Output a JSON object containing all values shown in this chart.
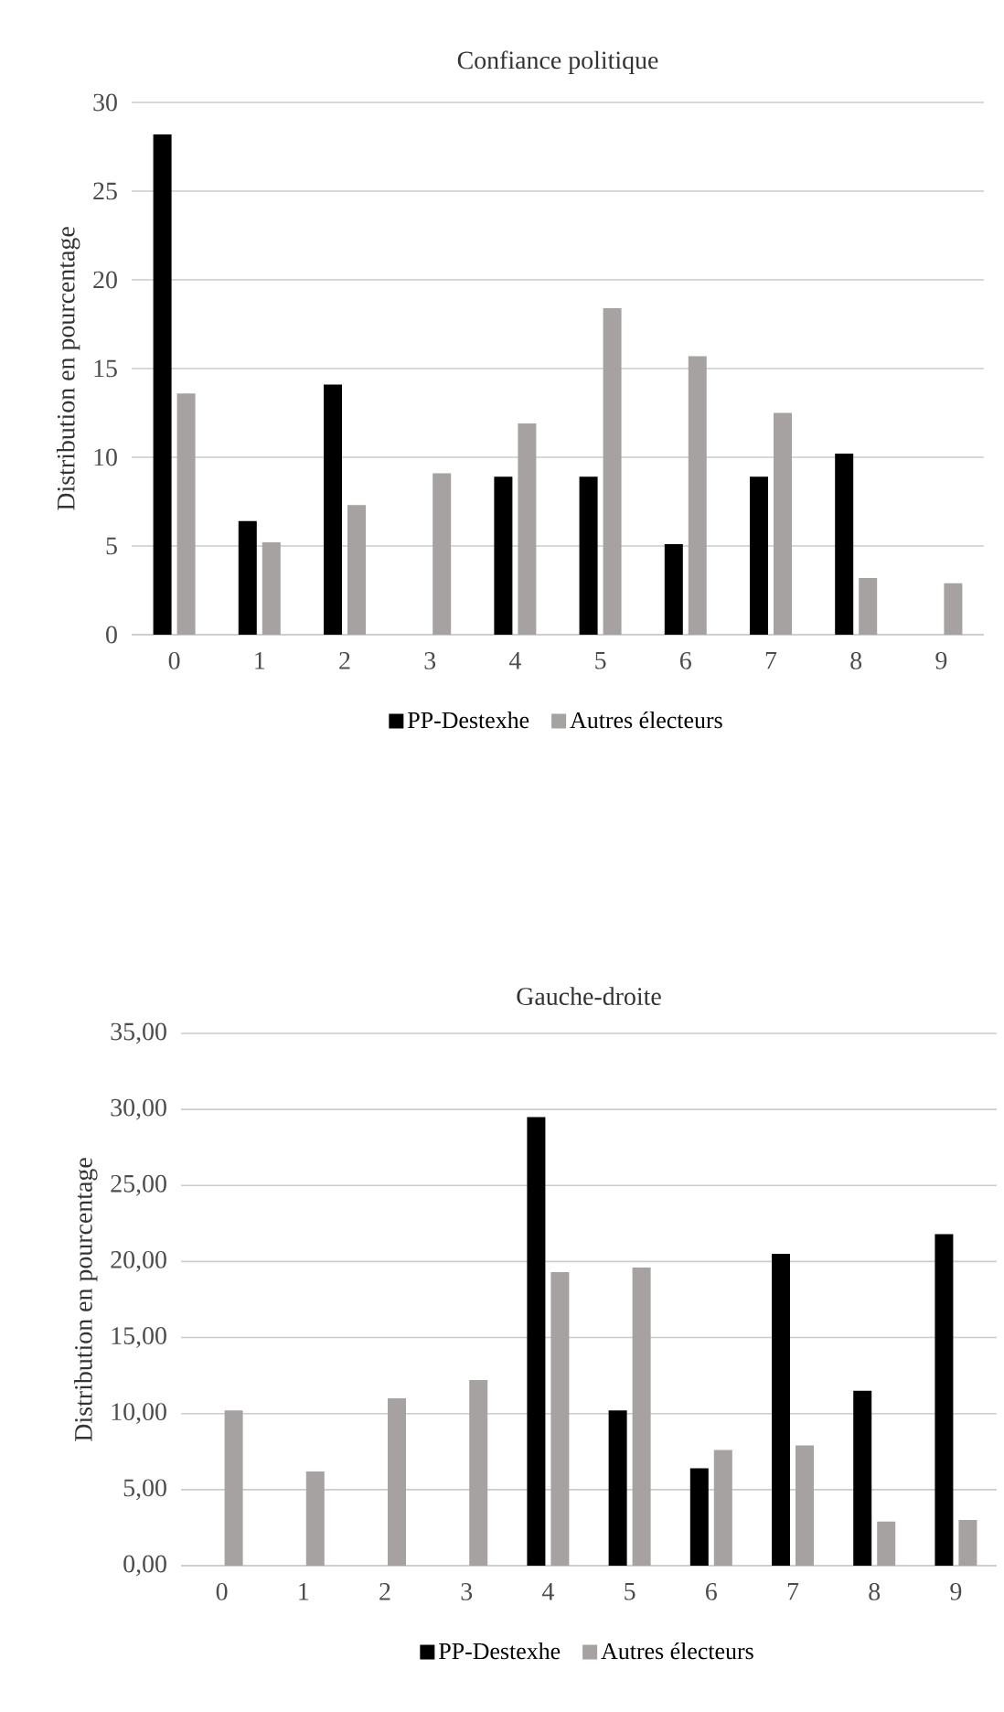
{
  "chart_data": [
    {
      "type": "bar",
      "title": "Confiance politique",
      "ylabel": "Distribution en pourcentage",
      "categories": [
        "0",
        "1",
        "2",
        "3",
        "4",
        "5",
        "6",
        "7",
        "8",
        "9"
      ],
      "series": [
        {
          "name": "PP-Destexhe",
          "color": "#000000",
          "values": [
            28.2,
            6.4,
            14.1,
            0,
            8.9,
            8.9,
            5.1,
            8.9,
            10.2,
            0
          ]
        },
        {
          "name": "Autres électeurs",
          "color": "#a5a2a1",
          "values": [
            13.6,
            5.2,
            7.3,
            9.1,
            11.9,
            18.4,
            15.7,
            12.5,
            3.2,
            2.9
          ]
        }
      ],
      "ylim": [
        0,
        30
      ],
      "yticks": [
        0,
        5,
        10,
        15,
        20,
        25,
        30
      ],
      "grid": "y",
      "legend": "bottom"
    },
    {
      "type": "bar",
      "title": "Gauche-droite",
      "ylabel": "Distribution en pourcentage",
      "categories": [
        "0",
        "1",
        "2",
        "3",
        "4",
        "5",
        "6",
        "7",
        "8",
        "9"
      ],
      "series": [
        {
          "name": "PP-Destexhe",
          "color": "#000000",
          "values": [
            0,
            0,
            0,
            0,
            29.5,
            10.2,
            6.4,
            20.5,
            11.5,
            21.8
          ]
        },
        {
          "name": "Autres électeurs",
          "color": "#a5a2a1",
          "values": [
            10.2,
            6.2,
            11.0,
            12.2,
            19.3,
            19.6,
            7.6,
            7.9,
            2.9,
            3.0
          ]
        }
      ],
      "ylim": [
        0,
        35
      ],
      "yticks": [
        {
          "value": 0,
          "label": "0,00"
        },
        {
          "value": 5,
          "label": "5,00"
        },
        {
          "value": 10,
          "label": "10,00"
        },
        {
          "value": 15,
          "label": "15,00"
        },
        {
          "value": 20,
          "label": "20,00"
        },
        {
          "value": 25,
          "label": "25,00"
        },
        {
          "value": 30,
          "label": "30,00"
        },
        {
          "value": 35,
          "label": "35,00"
        }
      ],
      "grid": "y",
      "legend": "bottom"
    }
  ]
}
